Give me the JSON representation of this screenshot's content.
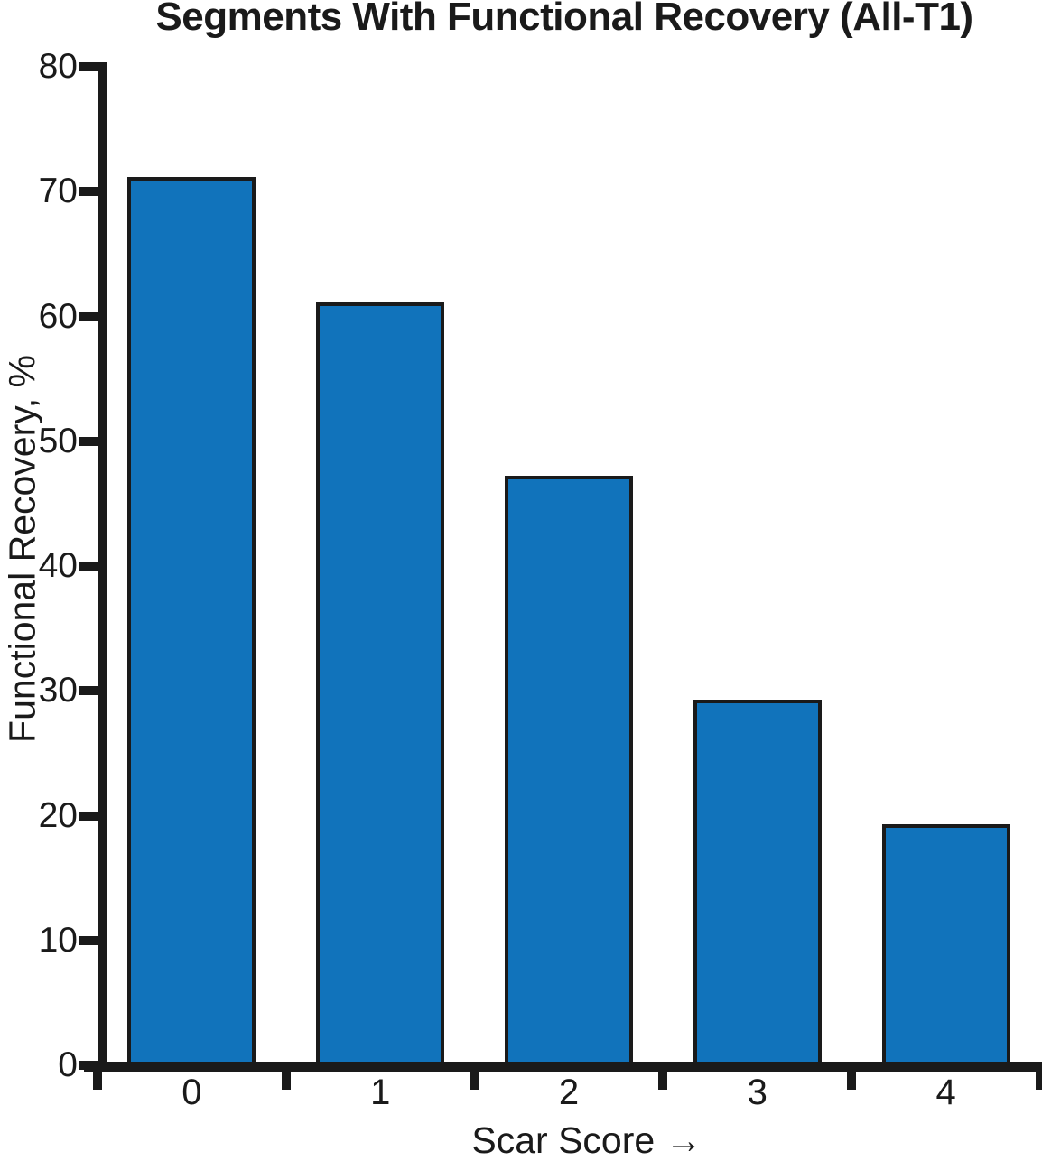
{
  "figure": {
    "title": "Segments With Functional Recovery (All-T1)"
  },
  "chart_data": {
    "type": "bar",
    "title": "Segments With Functional Recovery (All-T1)",
    "categories": [
      "0",
      "1",
      "2",
      "3",
      "4"
    ],
    "values": [
      71.2,
      61.1,
      47.2,
      29.3,
      19.3
    ],
    "xlabel": "Scar Score →",
    "ylabel": "Functional Recovery, %",
    "ylim": [
      0,
      80
    ],
    "yticks": [
      0,
      10,
      20,
      30,
      40,
      50,
      60,
      70,
      80
    ],
    "grid": false,
    "legend": "none",
    "colors": {
      "bar_fill": "#1173BB",
      "bar_border": "#1A1A1A",
      "axis": "#1A1A1A",
      "text": "#1A1A1A",
      "background": "#FFFFFF"
    }
  }
}
